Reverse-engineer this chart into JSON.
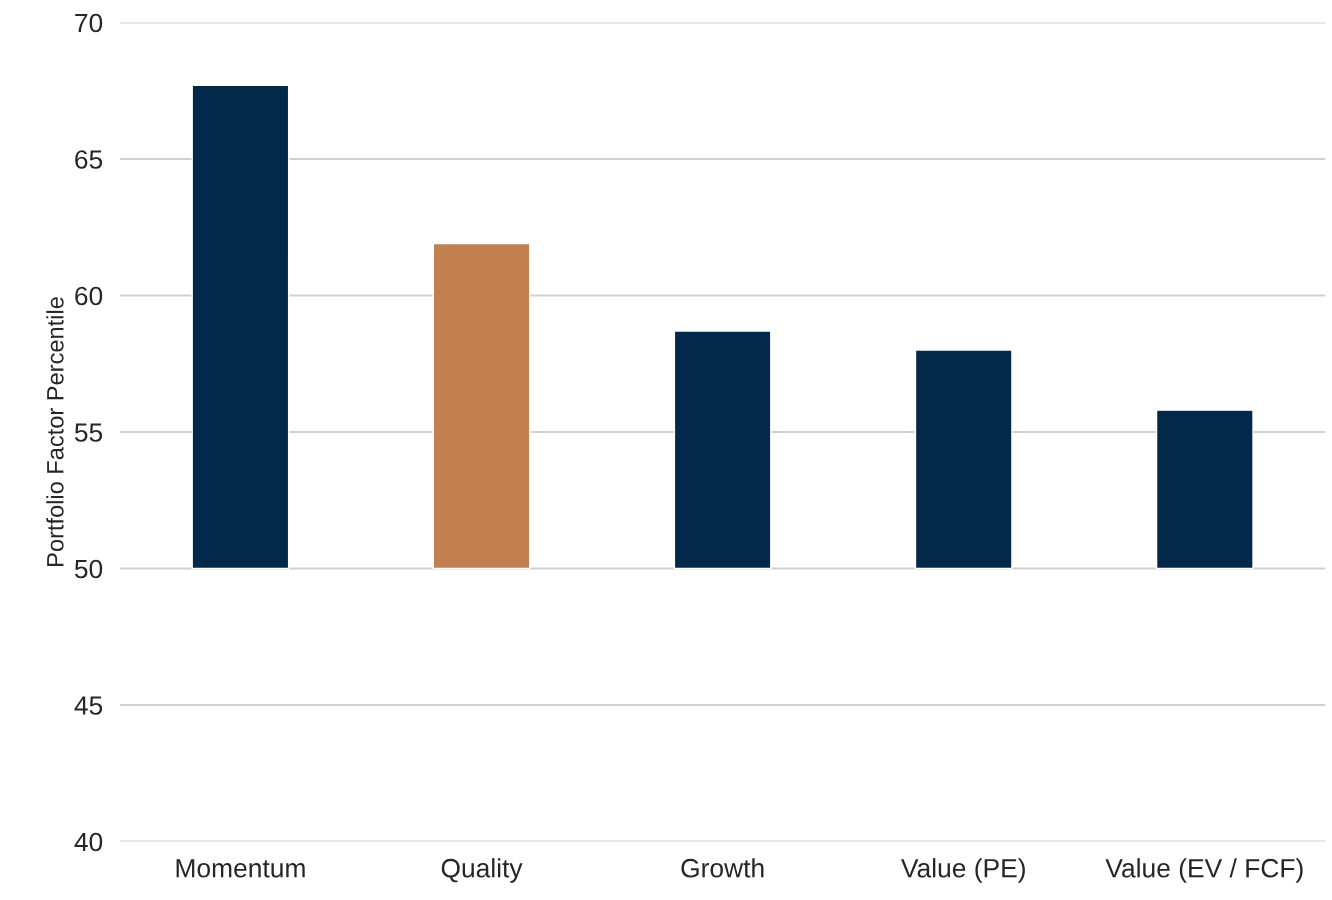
{
  "chart_data": {
    "type": "bar",
    "ylabel": "Portfolio Factor Percentile",
    "categories": [
      "Momentum",
      "Quality",
      "Growth",
      "Value (PE)",
      "Value (EV / FCF)"
    ],
    "base": [
      50,
      50,
      50,
      50,
      50
    ],
    "values": [
      17.7,
      11.9,
      8.7,
      8.0,
      5.8
    ],
    "colors": [
      "#03294a",
      "#c27f50",
      "#03294a",
      "#03294a",
      "#03294a"
    ],
    "ylim": [
      40,
      70
    ],
    "yticks": [
      40,
      45,
      50,
      55,
      60,
      65,
      70
    ],
    "grid": "y"
  }
}
